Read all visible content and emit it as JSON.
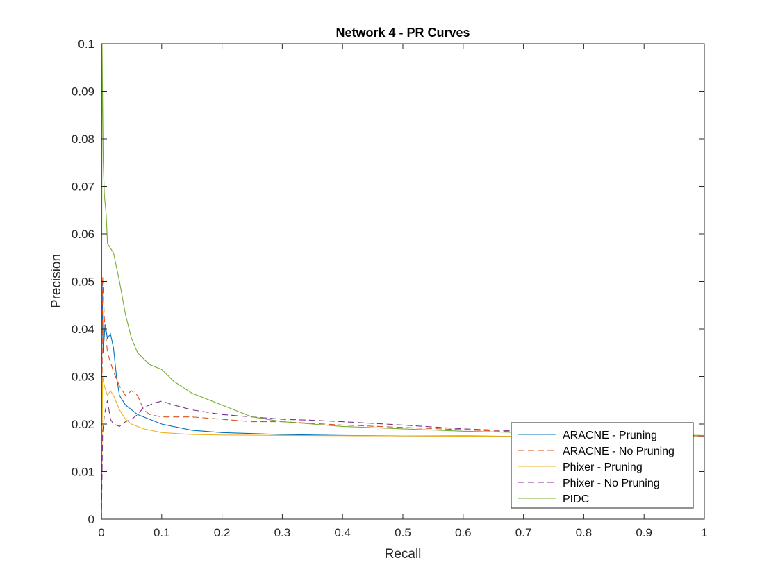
{
  "chart_data": {
    "type": "line",
    "title": "Network 4 - PR Curves",
    "xlabel": "Recall",
    "ylabel": "Precision",
    "xlim": [
      0,
      1
    ],
    "ylim": [
      0,
      0.1
    ],
    "x_ticks": [
      "0",
      "0.1",
      "0.2",
      "0.3",
      "0.4",
      "0.5",
      "0.6",
      "0.7",
      "0.8",
      "0.9",
      "1"
    ],
    "y_ticks": [
      "0",
      "0.01",
      "0.02",
      "0.03",
      "0.04",
      "0.05",
      "0.06",
      "0.07",
      "0.08",
      "0.09",
      "0.1"
    ],
    "grid": false,
    "legend_position": "bottom-right",
    "series": [
      {
        "name": "ARACNE - Pruning",
        "color": "#0072BD",
        "dash": "solid",
        "points": [
          [
            0,
            0
          ],
          [
            0.001,
            0.05
          ],
          [
            0.003,
            0.035
          ],
          [
            0.006,
            0.041
          ],
          [
            0.01,
            0.038
          ],
          [
            0.015,
            0.039
          ],
          [
            0.02,
            0.036
          ],
          [
            0.025,
            0.03
          ],
          [
            0.03,
            0.026
          ],
          [
            0.04,
            0.024
          ],
          [
            0.06,
            0.022
          ],
          [
            0.08,
            0.021
          ],
          [
            0.1,
            0.02
          ],
          [
            0.15,
            0.0187
          ],
          [
            0.2,
            0.0182
          ],
          [
            0.3,
            0.0178
          ],
          [
            0.4,
            0.0176
          ],
          [
            0.5,
            0.0175
          ],
          [
            0.6,
            0.0175
          ],
          [
            0.7,
            0.0174
          ],
          [
            0.8,
            0.0174
          ],
          [
            0.9,
            0.0174
          ],
          [
            1,
            0.0174
          ]
        ]
      },
      {
        "name": "ARACNE - No Pruning",
        "color": "#D95319",
        "dash": "dashed",
        "points": [
          [
            0,
            0
          ],
          [
            0.002,
            0.051
          ],
          [
            0.005,
            0.042
          ],
          [
            0.01,
            0.035
          ],
          [
            0.015,
            0.033
          ],
          [
            0.02,
            0.031
          ],
          [
            0.03,
            0.028
          ],
          [
            0.04,
            0.026
          ],
          [
            0.05,
            0.027
          ],
          [
            0.06,
            0.026
          ],
          [
            0.07,
            0.023
          ],
          [
            0.08,
            0.022
          ],
          [
            0.1,
            0.0215
          ],
          [
            0.15,
            0.0215
          ],
          [
            0.2,
            0.021
          ],
          [
            0.25,
            0.0205
          ],
          [
            0.3,
            0.0205
          ],
          [
            0.4,
            0.0198
          ],
          [
            0.5,
            0.0193
          ],
          [
            0.6,
            0.0188
          ],
          [
            0.7,
            0.0183
          ],
          [
            0.8,
            0.018
          ],
          [
            0.9,
            0.0178
          ],
          [
            1,
            0.0175
          ]
        ]
      },
      {
        "name": "Phixer - Pruning",
        "color": "#EDB120",
        "dash": "solid",
        "points": [
          [
            0,
            0
          ],
          [
            0.002,
            0.03
          ],
          [
            0.005,
            0.028
          ],
          [
            0.01,
            0.026
          ],
          [
            0.015,
            0.027
          ],
          [
            0.02,
            0.026
          ],
          [
            0.03,
            0.023
          ],
          [
            0.04,
            0.021
          ],
          [
            0.05,
            0.02
          ],
          [
            0.07,
            0.019
          ],
          [
            0.1,
            0.0182
          ],
          [
            0.15,
            0.0178
          ],
          [
            0.2,
            0.0177
          ],
          [
            0.3,
            0.0176
          ],
          [
            0.5,
            0.0175
          ],
          [
            0.7,
            0.0174
          ],
          [
            1,
            0.0174
          ]
        ]
      },
      {
        "name": "Phixer - No Pruning",
        "color": "#7E2F8E",
        "dash": "dashed",
        "points": [
          [
            0,
            0
          ],
          [
            0.002,
            0.018
          ],
          [
            0.005,
            0.022
          ],
          [
            0.01,
            0.025
          ],
          [
            0.015,
            0.021
          ],
          [
            0.02,
            0.02
          ],
          [
            0.03,
            0.0195
          ],
          [
            0.04,
            0.0205
          ],
          [
            0.05,
            0.021
          ],
          [
            0.06,
            0.022
          ],
          [
            0.07,
            0.0235
          ],
          [
            0.08,
            0.024
          ],
          [
            0.09,
            0.0245
          ],
          [
            0.1,
            0.0248
          ],
          [
            0.12,
            0.024
          ],
          [
            0.15,
            0.023
          ],
          [
            0.2,
            0.022
          ],
          [
            0.25,
            0.0215
          ],
          [
            0.3,
            0.021
          ],
          [
            0.35,
            0.0208
          ],
          [
            0.4,
            0.0205
          ],
          [
            0.5,
            0.0198
          ],
          [
            0.6,
            0.019
          ],
          [
            0.7,
            0.0185
          ],
          [
            0.8,
            0.018
          ],
          [
            0.9,
            0.0178
          ],
          [
            1,
            0.0175
          ]
        ]
      },
      {
        "name": "PIDC",
        "color": "#77AC30",
        "dash": "solid",
        "points": [
          [
            0,
            0
          ],
          [
            0.001,
            0.1
          ],
          [
            0.003,
            0.075
          ],
          [
            0.005,
            0.068
          ],
          [
            0.008,
            0.064
          ],
          [
            0.01,
            0.058
          ],
          [
            0.015,
            0.057
          ],
          [
            0.02,
            0.056
          ],
          [
            0.03,
            0.05
          ],
          [
            0.04,
            0.043
          ],
          [
            0.05,
            0.038
          ],
          [
            0.06,
            0.035
          ],
          [
            0.08,
            0.0325
          ],
          [
            0.1,
            0.0315
          ],
          [
            0.12,
            0.029
          ],
          [
            0.15,
            0.0265
          ],
          [
            0.2,
            0.024
          ],
          [
            0.25,
            0.0215
          ],
          [
            0.3,
            0.0205
          ],
          [
            0.35,
            0.02
          ],
          [
            0.4,
            0.0195
          ],
          [
            0.5,
            0.019
          ],
          [
            0.6,
            0.0185
          ],
          [
            0.7,
            0.0182
          ],
          [
            0.8,
            0.018
          ],
          [
            0.9,
            0.0178
          ],
          [
            1,
            0.0176
          ]
        ]
      }
    ]
  }
}
